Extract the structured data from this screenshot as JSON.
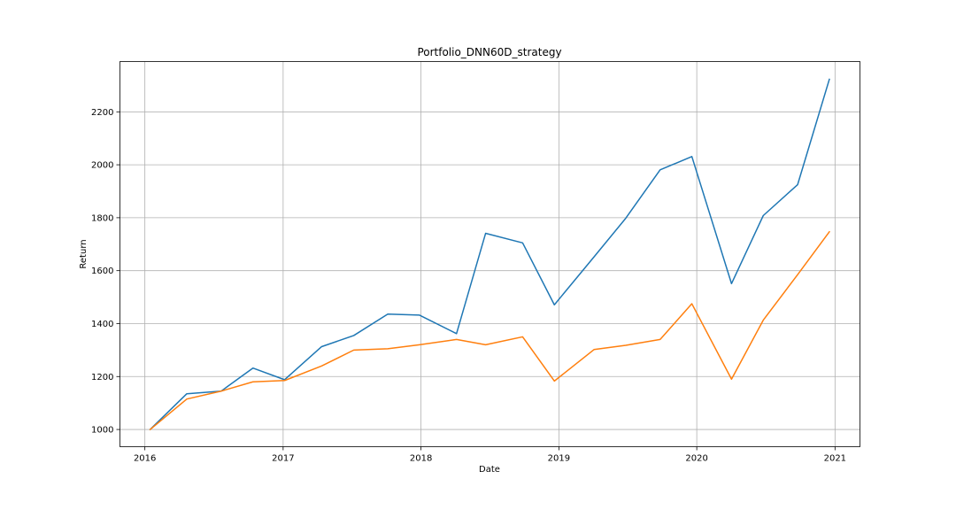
{
  "chart_data": {
    "type": "line",
    "title": "Portfolio_DNN60D_strategy",
    "xlabel": "Date",
    "ylabel": "Return",
    "xlim": [
      "2015-10-27",
      "2021-03-08"
    ],
    "ylim": [
      935,
      2390
    ],
    "x_ticks": [
      {
        "date": "2016-01-01",
        "label": "2016"
      },
      {
        "date": "2017-01-01",
        "label": "2017"
      },
      {
        "date": "2018-01-01",
        "label": "2018"
      },
      {
        "date": "2019-01-01",
        "label": "2019"
      },
      {
        "date": "2020-01-01",
        "label": "2020"
      },
      {
        "date": "2021-01-01",
        "label": "2021"
      }
    ],
    "y_ticks": [
      1000,
      1200,
      1400,
      1600,
      1800,
      2000,
      2200
    ],
    "grid": true,
    "x": [
      "2016-01-15",
      "2016-04-21",
      "2016-07-21",
      "2016-10-13",
      "2017-01-05",
      "2017-04-13",
      "2017-07-07",
      "2017-10-05",
      "2017-12-28",
      "2018-04-05",
      "2018-06-21",
      "2018-09-27",
      "2018-12-20",
      "2019-04-04",
      "2019-06-27",
      "2019-09-26",
      "2019-12-19",
      "2020-04-02",
      "2020-06-25",
      "2020-09-24",
      "2020-12-17"
    ],
    "series": [
      {
        "color": "#1f77b4",
        "values": [
          1000,
          1135,
          1145,
          1232,
          1188,
          1313,
          1355,
          1436,
          1432,
          1362,
          1741,
          1705,
          1471,
          1652,
          1798,
          1981,
          2031,
          1551,
          1808,
          1925,
          2323
        ]
      },
      {
        "color": "#ff7f0e",
        "values": [
          1000,
          1115,
          1145,
          1180,
          1185,
          1240,
          1300,
          1305,
          1320,
          1340,
          1320,
          1350,
          1183,
          1302,
          1318,
          1340,
          1475,
          1190,
          1413,
          1585,
          1747
        ]
      }
    ]
  }
}
